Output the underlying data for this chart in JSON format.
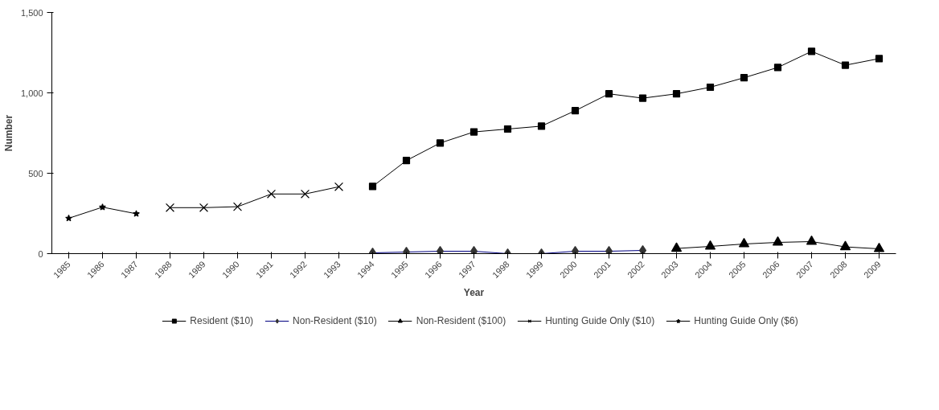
{
  "chart_data": {
    "type": "line",
    "xlabel": "Year",
    "ylabel": "Number",
    "categories": [
      "1985",
      "1986",
      "1987",
      "1988",
      "1989",
      "1990",
      "1991",
      "1992",
      "1993",
      "1994",
      "1995",
      "1996",
      "1997",
      "1998",
      "1999",
      "2000",
      "2001",
      "2002",
      "2003",
      "2004",
      "2005",
      "2006",
      "2007",
      "2008",
      "2009"
    ],
    "ylim": [
      0,
      1500
    ],
    "yticks": [
      0,
      500,
      {
        "value": 1000,
        "label": "1,000"
      },
      {
        "value": 1500,
        "label": "1,500"
      }
    ],
    "grid": false,
    "legend": "bottom",
    "line_style": "solid",
    "series": [
      {
        "name": "Resident ($10)",
        "color": "#000000",
        "marker": "square",
        "values": [
          null,
          null,
          null,
          null,
          null,
          null,
          null,
          null,
          null,
          418,
          579,
          688,
          757,
          775,
          793,
          889,
          994,
          967,
          994,
          1035,
          1094,
          1158,
          1258,
          1172,
          1213
        ]
      },
      {
        "name": "Non-Resident ($10)",
        "color": "#000080",
        "marker": "diamond",
        "values": [
          null,
          null,
          null,
          null,
          null,
          null,
          null,
          null,
          null,
          5,
          10,
          15,
          15,
          0,
          0,
          15,
          15,
          20,
          null,
          null,
          null,
          null,
          null,
          null,
          null
        ]
      },
      {
        "name": "Non-Resident ($100)",
        "color": "#000000",
        "marker": "triangle",
        "values": [
          null,
          null,
          null,
          null,
          null,
          null,
          null,
          null,
          null,
          null,
          null,
          null,
          null,
          null,
          null,
          null,
          null,
          null,
          32,
          45,
          60,
          70,
          75,
          42,
          30
        ]
      },
      {
        "name": "Hunting Guide Only ($10)",
        "color": "#000000",
        "marker": "cross",
        "values": [
          null,
          null,
          null,
          286,
          286,
          292,
          371,
          371,
          416,
          null,
          null,
          null,
          null,
          null,
          null,
          null,
          null,
          null,
          null,
          null,
          null,
          null,
          null,
          null,
          null
        ]
      },
      {
        "name": "Hunting Guide Only ($6)",
        "color": "#000000",
        "marker": "star",
        "values": [
          220,
          289,
          248,
          null,
          null,
          null,
          null,
          null,
          null,
          null,
          null,
          null,
          null,
          null,
          null,
          null,
          null,
          null,
          null,
          null,
          null,
          null,
          null,
          null,
          null
        ]
      }
    ]
  }
}
